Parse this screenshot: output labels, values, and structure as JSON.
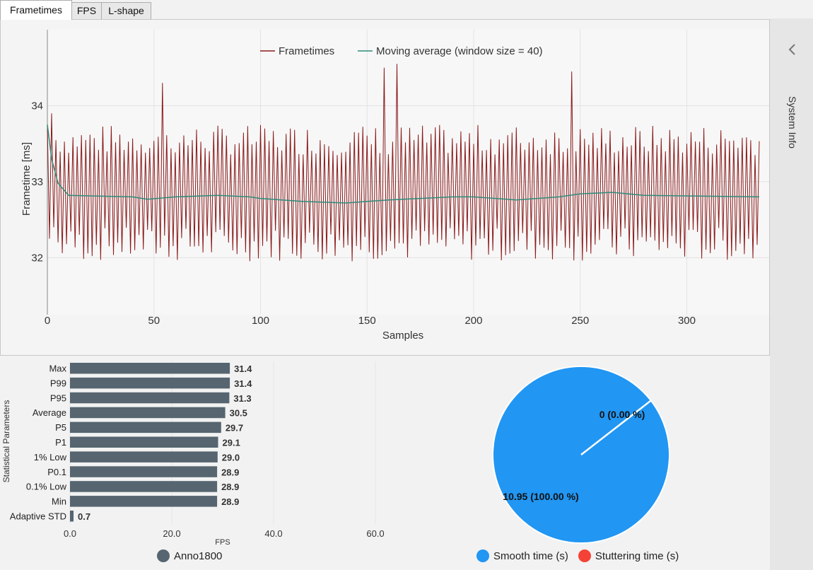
{
  "tabs": [
    {
      "label": "Frametimes",
      "active": true
    },
    {
      "label": "FPS",
      "active": false
    },
    {
      "label": "L-shape",
      "active": false
    }
  ],
  "sidebar": {
    "label": "System Info",
    "icon": "chevron-left-icon"
  },
  "frametimes_chart": {
    "type": "line",
    "xlabel": "Samples",
    "ylabel": "Frametime [ms]",
    "xlim": [
      0,
      334
    ],
    "ylim": [
      31.25,
      35.0
    ],
    "xticks": [
      0,
      50,
      100,
      150,
      200,
      250,
      300
    ],
    "yticks": [
      32,
      33,
      34
    ],
    "legend_position": "top-center",
    "series": [
      {
        "name": "Frametimes",
        "color": "#8b1a1a",
        "pattern": "alternating high/low about 33.0 ms, roughly 32.0–33.7 ms",
        "spikes": [
          {
            "x": 54,
            "y": 34.3
          },
          {
            "x": 158,
            "y": 34.5
          },
          {
            "x": 164,
            "y": 34.55
          },
          {
            "x": 246,
            "y": 34.45
          }
        ]
      },
      {
        "name": "Moving average (window size = 40)",
        "color": "#2e8b7a",
        "approx_values": [
          [
            0,
            33.75
          ],
          [
            2,
            33.3
          ],
          [
            5,
            32.98
          ],
          [
            10,
            32.82
          ],
          [
            40,
            32.8
          ],
          [
            47,
            32.77
          ],
          [
            60,
            32.8
          ],
          [
            80,
            32.82
          ],
          [
            95,
            32.8
          ],
          [
            100,
            32.78
          ],
          [
            120,
            32.74
          ],
          [
            140,
            32.72
          ],
          [
            160,
            32.76
          ],
          [
            190,
            32.8
          ],
          [
            200,
            32.8
          ],
          [
            220,
            32.76
          ],
          [
            240,
            32.8
          ],
          [
            250,
            32.84
          ],
          [
            265,
            32.86
          ],
          [
            280,
            32.82
          ],
          [
            334,
            32.8
          ]
        ]
      }
    ]
  },
  "chart_data": [
    {
      "type": "bar",
      "orientation": "horizontal",
      "ylabel": "Statistical Parameters",
      "xlabel": "FPS",
      "xlim": [
        0,
        60
      ],
      "xticks": [
        "0.0",
        "20.0",
        "40.0",
        "60.0"
      ],
      "categories": [
        "Max",
        "P99",
        "P95",
        "Average",
        "P5",
        "P1",
        "1% Low",
        "P0.1",
        "0.1% Low",
        "Min",
        "Adaptive STD"
      ],
      "series": [
        {
          "name": "Anno1800",
          "values": [
            31.4,
            31.4,
            31.3,
            30.5,
            29.7,
            29.1,
            29.0,
            28.9,
            28.9,
            28.9,
            0.7
          ]
        }
      ],
      "value_labels": [
        "31.4",
        "31.4",
        "31.3",
        "30.5",
        "29.7",
        "29.1",
        "29.0",
        "28.9",
        "28.9",
        "28.9",
        "0.7"
      ],
      "bar_color": "#56656f"
    },
    {
      "type": "pie",
      "slices": [
        {
          "name": "Smooth time (s)",
          "value": 10.95,
          "label": "10.95 (100.00 %)",
          "color": "#2196f3"
        },
        {
          "name": "Stuttering time (s)",
          "value": 0,
          "label": "0 (0.00 %)",
          "color": "#f44336"
        }
      ]
    }
  ]
}
